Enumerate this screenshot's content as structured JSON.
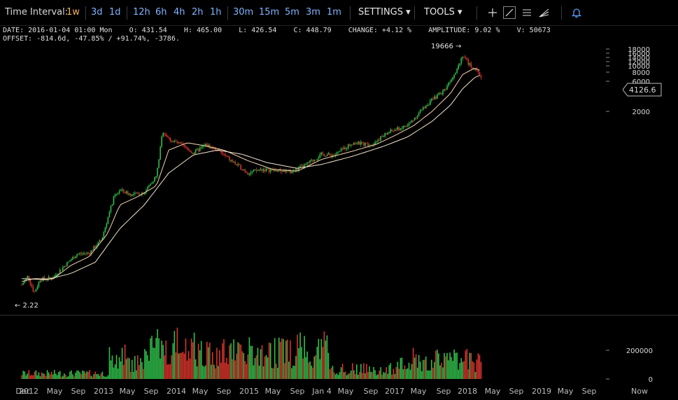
{
  "toolbar": {
    "label": "Time Interval:",
    "intervals": [
      "1w",
      "3d",
      "1d",
      "12h",
      "6h",
      "4h",
      "2h",
      "1h",
      "30m",
      "15m",
      "5m",
      "3m",
      "1m"
    ],
    "active_interval": "1w",
    "settings": "SETTINGS",
    "tools": "TOOLS",
    "tool_icons": [
      "crosshair-icon",
      "line-tool-icon",
      "horizontal-lines-icon",
      "fib-fan-icon",
      "bell-icon"
    ]
  },
  "info": {
    "date": "DATE: 2016-01-04 01:00 Mon",
    "open": "O: 431.54",
    "high": "H: 465.00",
    "low": "L: 426.54",
    "close": "C: 448.79",
    "change": "CHANGE: +4.12 %",
    "amplitude": "AMPLITUDE: 9.02 %",
    "volume": "V: 50673",
    "offset": "OFFSET: -814.6d, -47.85% / +91.74%, -3786."
  },
  "chart_data": {
    "type": "candlestick",
    "price_axis_labels": [
      "18000",
      "16000",
      "14000",
      "12000",
      "10000",
      "8000",
      "6000",
      "2000"
    ],
    "current_price": "4126.6",
    "max_annotation": "19666 →",
    "min_annotation": "← 2.22",
    "volume_axis_labels": [
      "200000",
      "0"
    ],
    "x_tick_labels": [
      "Dec",
      "2012",
      "May",
      "Sep",
      "2013",
      "May",
      "Sep",
      "2014",
      "May",
      "Sep",
      "2015",
      "May",
      "Sep",
      "Jan 4",
      "May",
      "Sep",
      "2017",
      "May",
      "Sep",
      "2018",
      "May",
      "Sep",
      "2019",
      "May",
      "Sep",
      "Now"
    ],
    "series": [
      {
        "points": [
          [
            "2011-12",
            4
          ],
          [
            "2012-01",
            5.5
          ],
          [
            "2012-02",
            3
          ],
          [
            "2012-03",
            4.9
          ],
          [
            "2012-05",
            5.1
          ],
          [
            "2012-07",
            8
          ],
          [
            "2012-09",
            12
          ],
          [
            "2012-11",
            12.5
          ],
          [
            "2013-01",
            20
          ],
          [
            "2013-03",
            90
          ],
          [
            "2013-04",
            120
          ],
          [
            "2013-06",
            100
          ],
          [
            "2013-08",
            110
          ],
          [
            "2013-10",
            200
          ],
          [
            "2013-11",
            1000
          ],
          [
            "2013-12",
            750
          ],
          [
            "2014-02",
            600
          ],
          [
            "2014-04",
            450
          ],
          [
            "2014-06",
            600
          ],
          [
            "2014-08",
            500
          ],
          [
            "2014-10",
            350
          ],
          [
            "2015-01",
            220
          ],
          [
            "2015-03",
            250
          ],
          [
            "2015-06",
            240
          ],
          [
            "2015-08",
            230
          ],
          [
            "2015-10",
            280
          ],
          [
            "2016-01",
            430
          ],
          [
            "2016-03",
            415
          ],
          [
            "2016-06",
            650
          ],
          [
            "2016-09",
            610
          ],
          [
            "2016-12",
            960
          ],
          [
            "2017-03",
            1200
          ],
          [
            "2017-06",
            2500
          ],
          [
            "2017-09",
            4300
          ],
          [
            "2017-11",
            9000
          ],
          [
            "2017-12",
            15000
          ],
          [
            "2018-01",
            11000
          ],
          [
            "2018-02",
            9000
          ],
          [
            "2018-03",
            7000
          ]
        ]
      },
      {
        "points": [
          [
            "2011-12",
            4.5
          ],
          [
            "2012-02",
            5
          ],
          [
            "2012-05",
            4.9
          ],
          [
            "2012-08",
            8
          ],
          [
            "2012-11",
            11
          ],
          [
            "2013-02",
            25
          ],
          [
            "2013-04",
            70
          ],
          [
            "2013-07",
            95
          ],
          [
            "2013-10",
            140
          ],
          [
            "2013-12",
            500
          ],
          [
            "2014-03",
            650
          ],
          [
            "2014-06",
            580
          ],
          [
            "2014-09",
            500
          ],
          [
            "2015-01",
            340
          ],
          [
            "2015-05",
            250
          ],
          [
            "2015-09",
            235
          ],
          [
            "2016-01",
            360
          ],
          [
            "2016-06",
            480
          ],
          [
            "2016-10",
            620
          ],
          [
            "2017-01",
            850
          ],
          [
            "2017-04",
            1200
          ],
          [
            "2017-07",
            2000
          ],
          [
            "2017-10",
            3800
          ],
          [
            "2017-12",
            7500
          ],
          [
            "2018-02",
            9500
          ],
          [
            "2018-03",
            8500
          ]
        ]
      },
      {
        "points": [
          [
            "2011-12",
            5
          ],
          [
            "2012-04",
            4.8
          ],
          [
            "2012-08",
            6
          ],
          [
            "2012-12",
            9
          ],
          [
            "2013-04",
            30
          ],
          [
            "2013-08",
            70
          ],
          [
            "2013-12",
            220
          ],
          [
            "2014-04",
            420
          ],
          [
            "2014-08",
            500
          ],
          [
            "2014-12",
            430
          ],
          [
            "2015-04",
            320
          ],
          [
            "2015-09",
            260
          ],
          [
            "2016-01",
            300
          ],
          [
            "2016-06",
            400
          ],
          [
            "2016-11",
            570
          ],
          [
            "2017-03",
            800
          ],
          [
            "2017-07",
            1400
          ],
          [
            "2017-10",
            2500
          ],
          [
            "2017-12",
            4500
          ],
          [
            "2018-02",
            6800
          ],
          [
            "2018-03",
            7400
          ]
        ]
      }
    ]
  }
}
